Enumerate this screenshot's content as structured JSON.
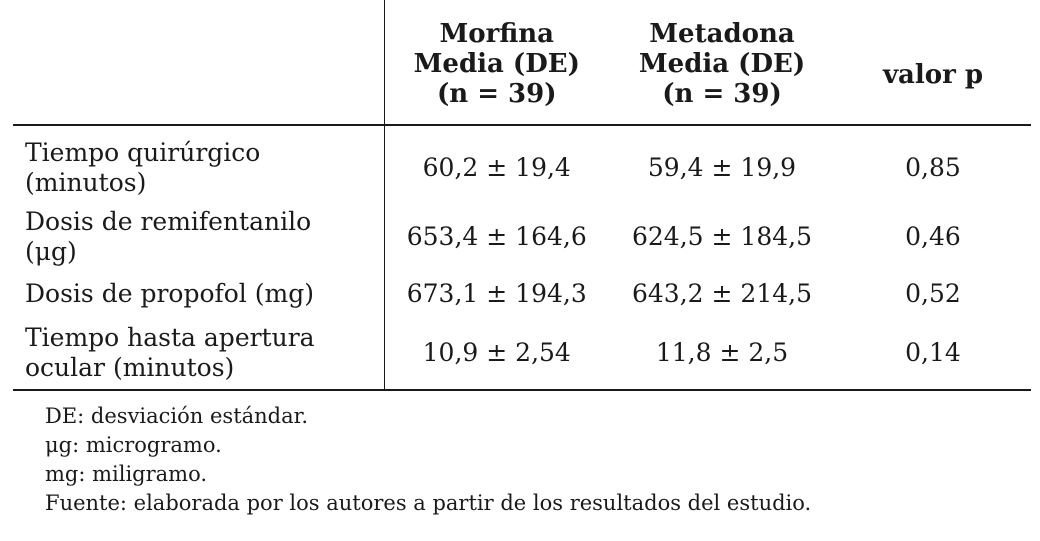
{
  "table": {
    "headers": [
      {
        "lines": []
      },
      {
        "lines": [
          "Morfina",
          "Media (DE)",
          "(n = 39)"
        ]
      },
      {
        "lines": [
          "Metadona",
          "Media (DE)",
          "(n = 39)"
        ]
      },
      {
        "lines": [
          "valor p"
        ]
      }
    ],
    "rows": [
      {
        "label_lines": [
          "Tiempo quirúrgico",
          "(minutos)"
        ],
        "morfina": "60,2 ± 19,4",
        "metadona": "59,4 ± 19,9",
        "p": "0,85"
      },
      {
        "label_lines": [
          "Dosis de remifentanilo",
          "(μg)"
        ],
        "morfina": "653,4 ± 164,6",
        "metadona": "624,5 ± 184,5",
        "p": "0,46"
      },
      {
        "label_lines": [
          "Dosis de propofol (mg)"
        ],
        "morfina": "673,1 ± 194,3",
        "metadona": "643,2 ± 214,5",
        "p": "0,52"
      },
      {
        "label_lines": [
          "Tiempo hasta apertura",
          "ocular (minutos)"
        ],
        "morfina": "10,9 ± 2,54",
        "metadona": "11,8 ± 2,5",
        "p": "0,14"
      }
    ]
  },
  "notes": [
    "DE: desviación estándar.",
    "μg: microgramo.",
    "mg: miligramo.",
    "Fuente: elaborada por los autores a partir de los resultados del estudio."
  ]
}
